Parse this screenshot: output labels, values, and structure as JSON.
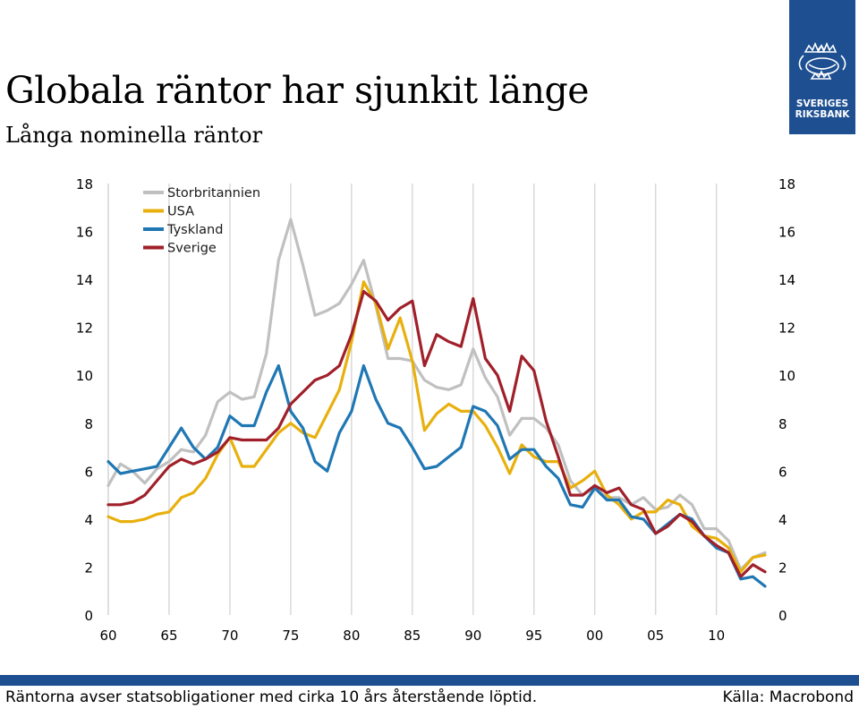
{
  "header": {
    "title": "Globala räntor har sjunkit länge",
    "subtitle": "Långa nominella räntor"
  },
  "logo": {
    "line1": "SVERIGES",
    "line2": "RIKSBANK",
    "icon": "riksbank-crest-icon"
  },
  "footer": {
    "note": "Räntorna avser statsobligationer med cirka 10 års återstående löptid.",
    "source": "Källa: Macrobond"
  },
  "colors": {
    "storbritannien": "#c0c0c0",
    "usa": "#e8b00e",
    "tyskland": "#1f77b4",
    "sverige": "#a0202a",
    "brand": "#1d4f91"
  },
  "chart_data": {
    "type": "line",
    "title": "",
    "xlabel": "",
    "ylabel": "",
    "x_tick_labels": [
      "60",
      "65",
      "70",
      "75",
      "80",
      "85",
      "90",
      "95",
      "00",
      "05",
      "10"
    ],
    "x_tick_years": [
      1960,
      1965,
      1970,
      1975,
      1980,
      1985,
      1990,
      1995,
      2000,
      2005,
      2010
    ],
    "xlim": [
      1960,
      2014
    ],
    "ylim": [
      0,
      18
    ],
    "y_ticks": [
      0,
      2,
      4,
      6,
      8,
      10,
      12,
      14,
      16,
      18
    ],
    "y_axis_left_and_right": true,
    "grid": "vertical",
    "legend_position": "top-left",
    "series": [
      {
        "name": "Storbritannien",
        "color": "#c0c0c0",
        "points": [
          [
            1960,
            5.4
          ],
          [
            1961,
            6.3
          ],
          [
            1962,
            6.0
          ],
          [
            1963,
            5.5
          ],
          [
            1964,
            6.1
          ],
          [
            1965,
            6.4
          ],
          [
            1966,
            6.9
          ],
          [
            1967,
            6.8
          ],
          [
            1968,
            7.5
          ],
          [
            1969,
            8.9
          ],
          [
            1970,
            9.3
          ],
          [
            1971,
            9.0
          ],
          [
            1972,
            9.1
          ],
          [
            1973,
            10.9
          ],
          [
            1974,
            14.8
          ],
          [
            1975,
            16.5
          ],
          [
            1976,
            14.6
          ],
          [
            1977,
            12.5
          ],
          [
            1978,
            12.7
          ],
          [
            1979,
            13.0
          ],
          [
            1980,
            13.8
          ],
          [
            1981,
            14.8
          ],
          [
            1982,
            12.9
          ],
          [
            1983,
            10.7
          ],
          [
            1984,
            10.7
          ],
          [
            1985,
            10.6
          ],
          [
            1986,
            9.8
          ],
          [
            1987,
            9.5
          ],
          [
            1988,
            9.4
          ],
          [
            1989,
            9.6
          ],
          [
            1990,
            11.1
          ],
          [
            1991,
            9.9
          ],
          [
            1992,
            9.1
          ],
          [
            1993,
            7.5
          ],
          [
            1994,
            8.2
          ],
          [
            1995,
            8.2
          ],
          [
            1996,
            7.8
          ],
          [
            1997,
            7.1
          ],
          [
            1998,
            5.6
          ],
          [
            1999,
            5.0
          ],
          [
            2000,
            5.3
          ],
          [
            2001,
            4.9
          ],
          [
            2002,
            4.9
          ],
          [
            2003,
            4.6
          ],
          [
            2004,
            4.9
          ],
          [
            2005,
            4.4
          ],
          [
            2006,
            4.5
          ],
          [
            2007,
            5.0
          ],
          [
            2008,
            4.6
          ],
          [
            2009,
            3.6
          ],
          [
            2010,
            3.6
          ],
          [
            2011,
            3.1
          ],
          [
            2012,
            1.9
          ],
          [
            2013,
            2.4
          ],
          [
            2014,
            2.6
          ]
        ]
      },
      {
        "name": "USA",
        "color": "#e8b00e",
        "points": [
          [
            1960,
            4.1
          ],
          [
            1961,
            3.9
          ],
          [
            1962,
            3.9
          ],
          [
            1963,
            4.0
          ],
          [
            1964,
            4.2
          ],
          [
            1965,
            4.3
          ],
          [
            1966,
            4.9
          ],
          [
            1967,
            5.1
          ],
          [
            1968,
            5.7
          ],
          [
            1969,
            6.7
          ],
          [
            1970,
            7.4
          ],
          [
            1971,
            6.2
          ],
          [
            1972,
            6.2
          ],
          [
            1973,
            6.9
          ],
          [
            1974,
            7.6
          ],
          [
            1975,
            8.0
          ],
          [
            1976,
            7.6
          ],
          [
            1977,
            7.4
          ],
          [
            1978,
            8.4
          ],
          [
            1979,
            9.4
          ],
          [
            1980,
            11.4
          ],
          [
            1981,
            13.9
          ],
          [
            1982,
            13.0
          ],
          [
            1983,
            11.1
          ],
          [
            1984,
            12.4
          ],
          [
            1985,
            10.6
          ],
          [
            1986,
            7.7
          ],
          [
            1987,
            8.4
          ],
          [
            1988,
            8.8
          ],
          [
            1989,
            8.5
          ],
          [
            1990,
            8.5
          ],
          [
            1991,
            7.9
          ],
          [
            1992,
            7.0
          ],
          [
            1993,
            5.9
          ],
          [
            1994,
            7.1
          ],
          [
            1995,
            6.6
          ],
          [
            1996,
            6.4
          ],
          [
            1997,
            6.4
          ],
          [
            1998,
            5.3
          ],
          [
            1999,
            5.6
          ],
          [
            2000,
            6.0
          ],
          [
            2001,
            5.0
          ],
          [
            2002,
            4.6
          ],
          [
            2003,
            4.0
          ],
          [
            2004,
            4.3
          ],
          [
            2005,
            4.3
          ],
          [
            2006,
            4.8
          ],
          [
            2007,
            4.6
          ],
          [
            2008,
            3.7
          ],
          [
            2009,
            3.3
          ],
          [
            2010,
            3.2
          ],
          [
            2011,
            2.8
          ],
          [
            2012,
            1.8
          ],
          [
            2013,
            2.4
          ],
          [
            2014,
            2.5
          ]
        ]
      },
      {
        "name": "Tyskland",
        "color": "#1f77b4",
        "points": [
          [
            1960,
            6.4
          ],
          [
            1961,
            5.9
          ],
          [
            1962,
            6.0
          ],
          [
            1963,
            6.1
          ],
          [
            1964,
            6.2
          ],
          [
            1965,
            7.0
          ],
          [
            1966,
            7.8
          ],
          [
            1967,
            7.0
          ],
          [
            1968,
            6.5
          ],
          [
            1969,
            7.0
          ],
          [
            1970,
            8.3
          ],
          [
            1971,
            7.9
          ],
          [
            1972,
            7.9
          ],
          [
            1973,
            9.3
          ],
          [
            1974,
            10.4
          ],
          [
            1975,
            8.5
          ],
          [
            1976,
            7.8
          ],
          [
            1977,
            6.4
          ],
          [
            1978,
            6.0
          ],
          [
            1979,
            7.6
          ],
          [
            1980,
            8.5
          ],
          [
            1981,
            10.4
          ],
          [
            1982,
            9.0
          ],
          [
            1983,
            8.0
          ],
          [
            1984,
            7.8
          ],
          [
            1985,
            7.0
          ],
          [
            1986,
            6.1
          ],
          [
            1987,
            6.2
          ],
          [
            1988,
            6.6
          ],
          [
            1989,
            7.0
          ],
          [
            1990,
            8.7
          ],
          [
            1991,
            8.5
          ],
          [
            1992,
            7.9
          ],
          [
            1993,
            6.5
          ],
          [
            1994,
            6.9
          ],
          [
            1995,
            6.9
          ],
          [
            1996,
            6.2
          ],
          [
            1997,
            5.7
          ],
          [
            1998,
            4.6
          ],
          [
            1999,
            4.5
          ],
          [
            2000,
            5.3
          ],
          [
            2001,
            4.8
          ],
          [
            2002,
            4.8
          ],
          [
            2003,
            4.1
          ],
          [
            2004,
            4.0
          ],
          [
            2005,
            3.4
          ],
          [
            2006,
            3.8
          ],
          [
            2007,
            4.2
          ],
          [
            2008,
            4.0
          ],
          [
            2009,
            3.3
          ],
          [
            2010,
            2.8
          ],
          [
            2011,
            2.6
          ],
          [
            2012,
            1.5
          ],
          [
            2013,
            1.6
          ],
          [
            2014,
            1.2
          ]
        ]
      },
      {
        "name": "Sverige",
        "color": "#a0202a",
        "points": [
          [
            1960,
            4.6
          ],
          [
            1961,
            4.6
          ],
          [
            1962,
            4.7
          ],
          [
            1963,
            5.0
          ],
          [
            1964,
            5.6
          ],
          [
            1965,
            6.2
          ],
          [
            1966,
            6.5
          ],
          [
            1967,
            6.3
          ],
          [
            1968,
            6.5
          ],
          [
            1969,
            6.8
          ],
          [
            1970,
            7.4
          ],
          [
            1971,
            7.3
          ],
          [
            1972,
            7.3
          ],
          [
            1973,
            7.3
          ],
          [
            1974,
            7.8
          ],
          [
            1975,
            8.8
          ],
          [
            1976,
            9.3
          ],
          [
            1977,
            9.8
          ],
          [
            1978,
            10.0
          ],
          [
            1979,
            10.4
          ],
          [
            1980,
            11.7
          ],
          [
            1981,
            13.5
          ],
          [
            1982,
            13.1
          ],
          [
            1983,
            12.3
          ],
          [
            1984,
            12.8
          ],
          [
            1985,
            13.1
          ],
          [
            1986,
            10.4
          ],
          [
            1987,
            11.7
          ],
          [
            1988,
            11.4
          ],
          [
            1989,
            11.2
          ],
          [
            1990,
            13.2
          ],
          [
            1991,
            10.7
          ],
          [
            1992,
            10.0
          ],
          [
            1993,
            8.5
          ],
          [
            1994,
            10.8
          ],
          [
            1995,
            10.2
          ],
          [
            1996,
            8.1
          ],
          [
            1997,
            6.6
          ],
          [
            1998,
            5.0
          ],
          [
            1999,
            5.0
          ],
          [
            2000,
            5.4
          ],
          [
            2001,
            5.1
          ],
          [
            2002,
            5.3
          ],
          [
            2003,
            4.6
          ],
          [
            2004,
            4.4
          ],
          [
            2005,
            3.4
          ],
          [
            2006,
            3.7
          ],
          [
            2007,
            4.2
          ],
          [
            2008,
            3.9
          ],
          [
            2009,
            3.3
          ],
          [
            2010,
            2.9
          ],
          [
            2011,
            2.6
          ],
          [
            2012,
            1.6
          ],
          [
            2013,
            2.1
          ],
          [
            2014,
            1.8
          ]
        ]
      }
    ]
  }
}
